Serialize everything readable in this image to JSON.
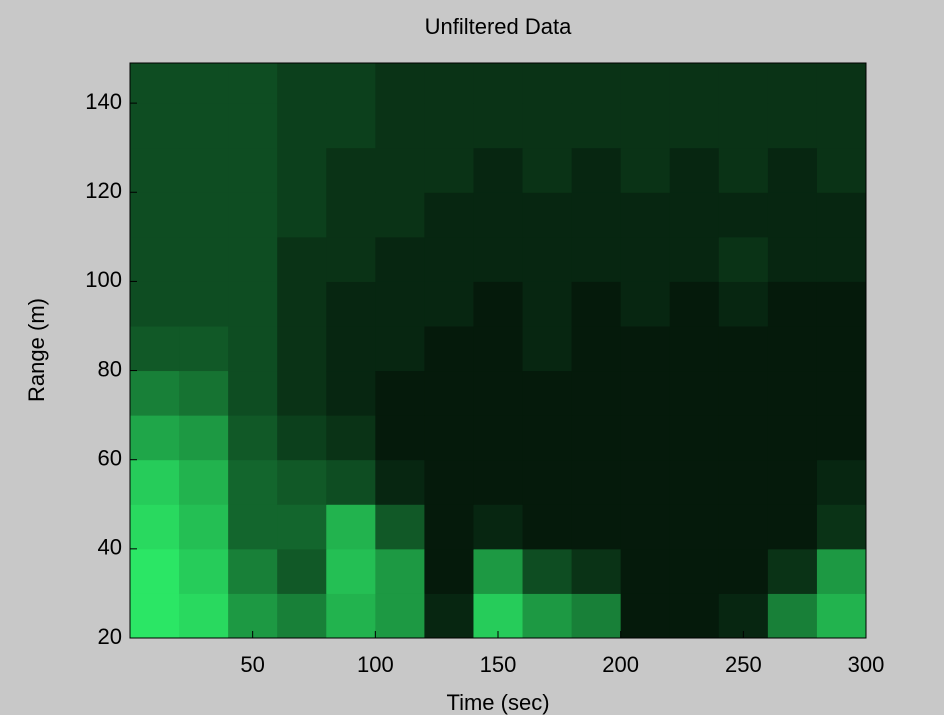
{
  "chart_data": {
    "type": "heatmap",
    "title": "Unfiltered Data",
    "x_label": "Time (sec)",
    "y_label": "Range (m)",
    "xbins": [
      0,
      20,
      40,
      60,
      80,
      100,
      120,
      140,
      160,
      180,
      200,
      220,
      240,
      260,
      280,
      300
    ],
    "ybins": [
      20,
      30,
      40,
      50,
      60,
      70,
      80,
      90,
      100,
      110,
      120,
      130,
      140,
      150
    ],
    "z": [
      [
        0.9,
        0.85,
        0.6,
        0.5,
        0.7,
        0.6,
        0.15,
        0.8,
        0.6,
        0.5,
        0.1,
        0.1,
        0.15,
        0.5,
        0.7
      ],
      [
        0.9,
        0.8,
        0.5,
        0.35,
        0.75,
        0.6,
        0.1,
        0.6,
        0.3,
        0.2,
        0.1,
        0.1,
        0.1,
        0.2,
        0.6
      ],
      [
        0.85,
        0.75,
        0.4,
        0.4,
        0.7,
        0.35,
        0.1,
        0.15,
        0.1,
        0.1,
        0.1,
        0.1,
        0.1,
        0.1,
        0.2
      ],
      [
        0.8,
        0.7,
        0.4,
        0.35,
        0.3,
        0.15,
        0.1,
        0.1,
        0.1,
        0.1,
        0.1,
        0.1,
        0.1,
        0.1,
        0.15
      ],
      [
        0.65,
        0.6,
        0.35,
        0.25,
        0.2,
        0.1,
        0.1,
        0.1,
        0.1,
        0.1,
        0.1,
        0.1,
        0.1,
        0.1,
        0.1
      ],
      [
        0.5,
        0.45,
        0.3,
        0.2,
        0.15,
        0.1,
        0.1,
        0.1,
        0.1,
        0.1,
        0.1,
        0.1,
        0.1,
        0.1,
        0.1
      ],
      [
        0.35,
        0.35,
        0.3,
        0.2,
        0.15,
        0.15,
        0.1,
        0.1,
        0.15,
        0.1,
        0.1,
        0.1,
        0.1,
        0.1,
        0.1
      ],
      [
        0.3,
        0.3,
        0.3,
        0.2,
        0.15,
        0.15,
        0.15,
        0.1,
        0.15,
        0.1,
        0.15,
        0.1,
        0.15,
        0.1,
        0.1
      ],
      [
        0.3,
        0.3,
        0.3,
        0.2,
        0.2,
        0.15,
        0.15,
        0.15,
        0.15,
        0.15,
        0.15,
        0.15,
        0.2,
        0.15,
        0.15
      ],
      [
        0.3,
        0.3,
        0.3,
        0.25,
        0.2,
        0.2,
        0.15,
        0.15,
        0.15,
        0.15,
        0.15,
        0.15,
        0.15,
        0.15,
        0.15
      ],
      [
        0.3,
        0.3,
        0.3,
        0.25,
        0.2,
        0.2,
        0.2,
        0.15,
        0.2,
        0.15,
        0.2,
        0.15,
        0.2,
        0.15,
        0.2
      ],
      [
        0.3,
        0.3,
        0.3,
        0.25,
        0.25,
        0.2,
        0.2,
        0.2,
        0.2,
        0.2,
        0.2,
        0.2,
        0.2,
        0.2,
        0.2
      ],
      [
        0.3,
        0.3,
        0.3,
        0.25,
        0.25,
        0.2,
        0.2,
        0.2,
        0.2,
        0.2,
        0.2,
        0.2,
        0.2,
        0.2,
        0.2
      ]
    ],
    "colors": [
      "#000000",
      "#30ff70"
    ],
    "xlim": [
      0,
      300
    ],
    "ylim": [
      20,
      149
    ],
    "xticks": [
      50,
      100,
      150,
      200,
      250,
      300
    ],
    "yticks": [
      20,
      40,
      60,
      80,
      100,
      120,
      140
    ]
  }
}
